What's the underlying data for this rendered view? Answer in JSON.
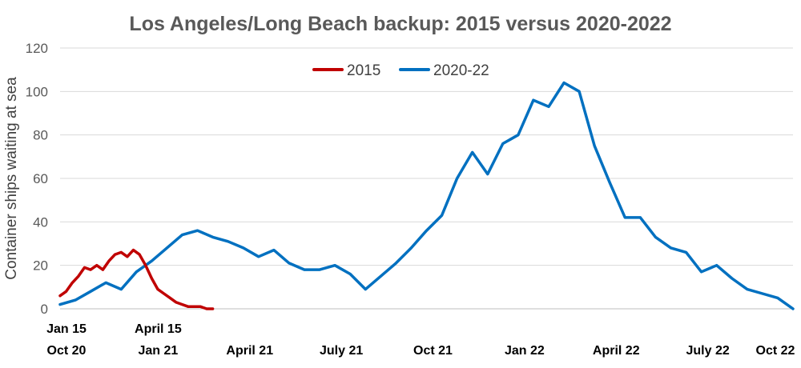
{
  "chart_data": {
    "type": "line",
    "title": "Los Angeles/Long Beach backup: 2015 versus 2020-2022",
    "ylabel": "Container ships waiting at sea",
    "xlabel": "",
    "ylim": [
      0,
      120
    ],
    "yticks": [
      0,
      20,
      40,
      60,
      80,
      100,
      120
    ],
    "grid": "horizontal",
    "legend_position": "top-center",
    "x_axis_2015_labels": [
      "Jan 15",
      "April 15"
    ],
    "x_axis_2020_labels": [
      "Oct 20",
      "Jan 21",
      "April 21",
      "July 21",
      "Oct 21",
      "Jan 22",
      "April 22",
      "July 22",
      "Oct 22"
    ],
    "x_axis_2020_label_months": [
      0,
      3,
      6,
      9,
      12,
      15,
      18,
      21,
      24
    ],
    "x_axis_2015_label_months": [
      0,
      3
    ],
    "series": [
      {
        "name": "2015",
        "color": "#c00000",
        "x_unit": "months since Jan 15",
        "x": [
          0,
          0.2,
          0.4,
          0.6,
          0.8,
          1.0,
          1.2,
          1.4,
          1.6,
          1.8,
          2.0,
          2.2,
          2.4,
          2.6,
          2.8,
          3.0,
          3.2,
          3.4,
          3.6,
          3.8,
          4.0,
          4.2,
          4.4,
          4.6,
          4.8,
          5.0
        ],
        "values": [
          6,
          8,
          12,
          15,
          19,
          18,
          20,
          18,
          22,
          25,
          26,
          24,
          27,
          25,
          20,
          14,
          9,
          7,
          5,
          3,
          2,
          1,
          1,
          1,
          0,
          0
        ]
      },
      {
        "name": "2020-22",
        "color": "#0070c0",
        "x_unit": "months since Oct 20",
        "x": [
          0,
          0.5,
          1.0,
          1.5,
          2.0,
          2.5,
          3.0,
          3.5,
          4.0,
          4.5,
          5.0,
          5.5,
          6.0,
          6.5,
          7.0,
          7.5,
          8.0,
          8.5,
          9.0,
          9.5,
          10.0,
          10.5,
          11.0,
          11.5,
          12.0,
          12.5,
          13.0,
          13.5,
          14.0,
          14.5,
          15.0,
          15.5,
          16.0,
          16.5,
          17.0,
          17.5,
          18.0,
          18.5,
          19.0,
          19.5,
          20.0,
          20.5,
          21.0,
          21.5,
          22.0,
          22.5,
          23.0,
          23.5,
          24.0
        ],
        "values": [
          2,
          4,
          8,
          12,
          9,
          17,
          22,
          28,
          34,
          36,
          33,
          31,
          28,
          24,
          27,
          21,
          18,
          18,
          20,
          16,
          9,
          15,
          21,
          28,
          36,
          43,
          60,
          72,
          62,
          76,
          80,
          96,
          93,
          104,
          100,
          75,
          58,
          42,
          42,
          33,
          28,
          26,
          17,
          20,
          14,
          9,
          7,
          5,
          0
        ]
      }
    ]
  }
}
